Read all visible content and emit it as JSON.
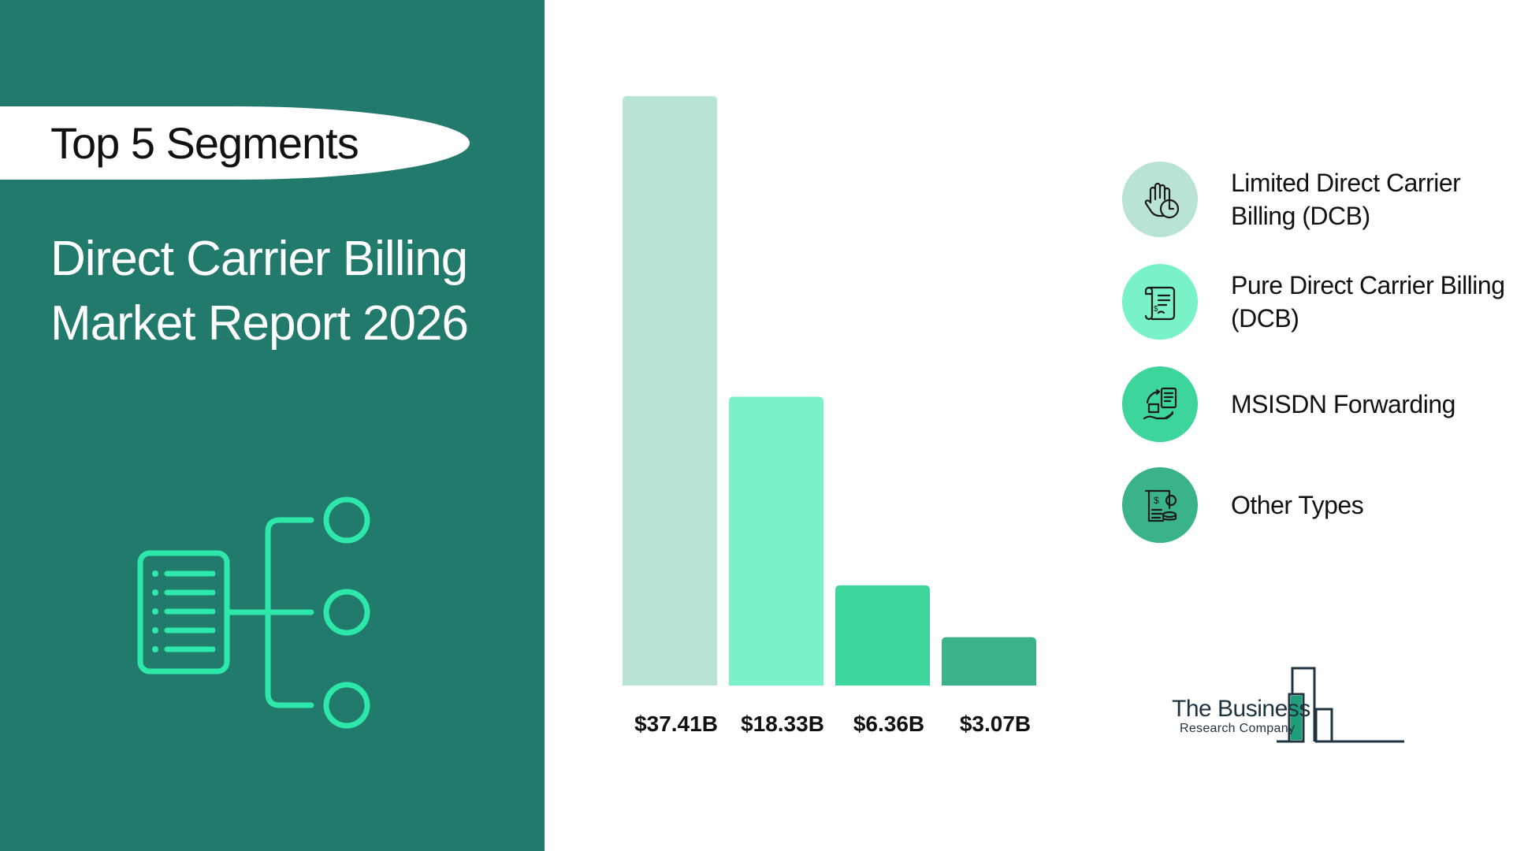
{
  "left_panel": {
    "pill_label": "Top 5 Segments",
    "title_line1": "Direct Carrier Billing",
    "title_line2": "Market Report 2026",
    "icon": "document-tree-icon"
  },
  "colors": {
    "panel_bg": "#217a6c",
    "accent": "#2ee8a9",
    "bar1": "#b9e4d5",
    "bar2": "#78f2c6",
    "bar3": "#3dd49e",
    "bar4": "#3bb38a"
  },
  "chart_data": {
    "type": "bar",
    "categories": [
      "Limited Direct Carrier Billing (DCB)",
      "Pure Direct Carrier Billing (DCB)",
      "MSISDN Forwarding",
      "Other Types"
    ],
    "values": [
      37.41,
      18.33,
      6.36,
      3.07
    ],
    "value_labels": [
      "$37.41B",
      "$18.33B",
      "$6.36B",
      "$3.07B"
    ],
    "unit": "$B",
    "ylim": [
      0,
      37.41
    ],
    "title": "",
    "xlabel": "",
    "ylabel": "",
    "grid": false,
    "legend_position": "right"
  },
  "legend": {
    "items": [
      {
        "label": "Limited Direct Carrier Billing (DCB)",
        "icon": "hand-clock-icon",
        "color": "#b9e4d5"
      },
      {
        "label": "Pure Direct Carrier Billing (DCB)",
        "icon": "bill-scroll-icon",
        "color": "#78f2c6"
      },
      {
        "label": "MSISDN Forwarding",
        "icon": "payment-transfer-icon",
        "color": "#3dd49e"
      },
      {
        "label": "Other Types",
        "icon": "invoice-coins-icon",
        "color": "#3bb38a"
      }
    ]
  },
  "logo": {
    "line1": "The Business",
    "line2": "Research Company"
  }
}
